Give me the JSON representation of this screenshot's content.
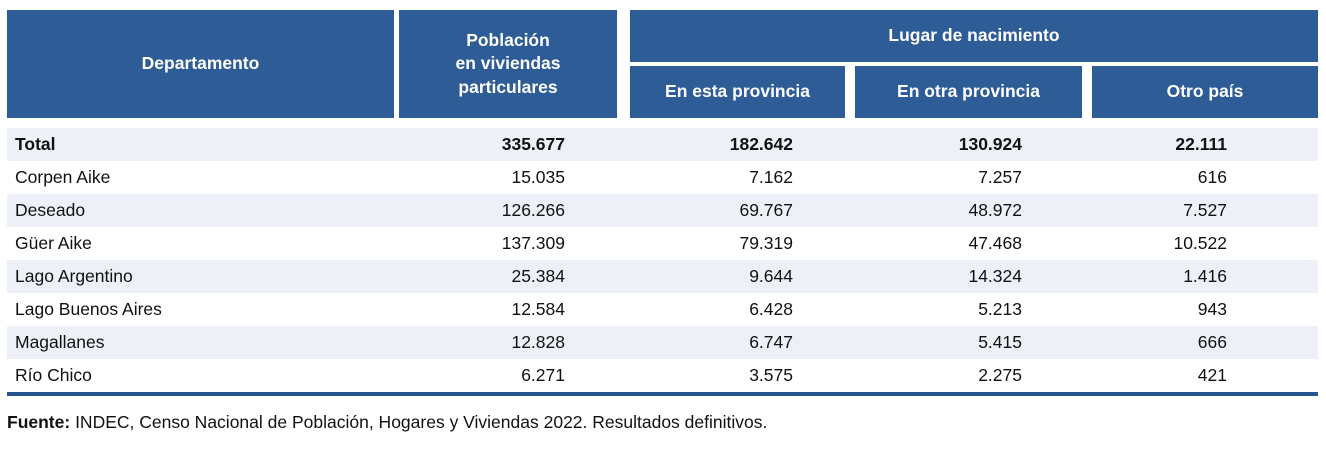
{
  "colors": {
    "header_bg": "#2e5c96",
    "header_text": "#ffffff",
    "row_alt_bg": "#edf1f7",
    "bottom_rule": "#27548e",
    "body_text": "#111111"
  },
  "header": {
    "departamento": "Departamento",
    "poblacion": "Población\nen viviendas\nparticulares",
    "lugar_group": "Lugar de nacimiento",
    "sub_en_esta": "En esta provincia",
    "sub_en_otra": "En otra provincia",
    "sub_otro_pais": "Otro país"
  },
  "table": {
    "rows": [
      {
        "departamento": "Total",
        "poblacion": "335.677",
        "en_esta_provincia": "182.642",
        "en_otra_provincia": "130.924",
        "otro_pais": "22.111"
      },
      {
        "departamento": "Corpen Aike",
        "poblacion": "15.035",
        "en_esta_provincia": "7.162",
        "en_otra_provincia": "7.257",
        "otro_pais": "616"
      },
      {
        "departamento": "Deseado",
        "poblacion": "126.266",
        "en_esta_provincia": "69.767",
        "en_otra_provincia": "48.972",
        "otro_pais": "7.527"
      },
      {
        "departamento": "Güer Aike",
        "poblacion": "137.309",
        "en_esta_provincia": "79.319",
        "en_otra_provincia": "47.468",
        "otro_pais": "10.522"
      },
      {
        "departamento": "Lago Argentino",
        "poblacion": "25.384",
        "en_esta_provincia": "9.644",
        "en_otra_provincia": "14.324",
        "otro_pais": "1.416"
      },
      {
        "departamento": "Lago Buenos Aires",
        "poblacion": "12.584",
        "en_esta_provincia": "6.428",
        "en_otra_provincia": "5.213",
        "otro_pais": "943"
      },
      {
        "departamento": "Magallanes",
        "poblacion": "12.828",
        "en_esta_provincia": "6.747",
        "en_otra_provincia": "5.415",
        "otro_pais": "666"
      },
      {
        "departamento": "Río Chico",
        "poblacion": "6.271",
        "en_esta_provincia": "3.575",
        "en_otra_provincia": "2.275",
        "otro_pais": "421"
      }
    ]
  },
  "footer": {
    "source_label": "Fuente:",
    "source_text": " INDEC, Censo Nacional de Población, Hogares y Viviendas 2022. Resultados definitivos."
  }
}
